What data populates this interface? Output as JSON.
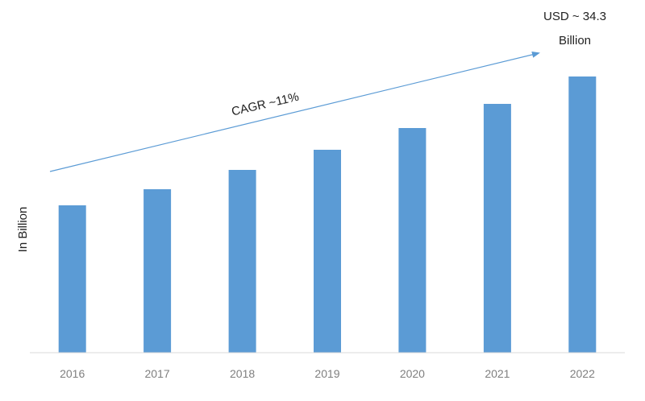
{
  "chart_data": {
    "type": "bar",
    "categories": [
      "2016",
      "2017",
      "2018",
      "2019",
      "2020",
      "2021",
      "2022"
    ],
    "series": [
      {
        "values": [
          18.3,
          20.3,
          22.7,
          25.2,
          27.9,
          30.9,
          34.3
        ]
      }
    ],
    "title": "",
    "xlabel": "",
    "ylabel": "In Billion",
    "ylim": [
      0,
      34.3
    ],
    "grid": false,
    "legend": "none",
    "bar_color": "#5b9bd5",
    "annotations": {
      "cagr_label": "CAGR ~11%",
      "end_value_line1": "USD ~ 34.3",
      "end_value_line2": "Billion",
      "arrow_color": "#5b9bd5"
    }
  }
}
